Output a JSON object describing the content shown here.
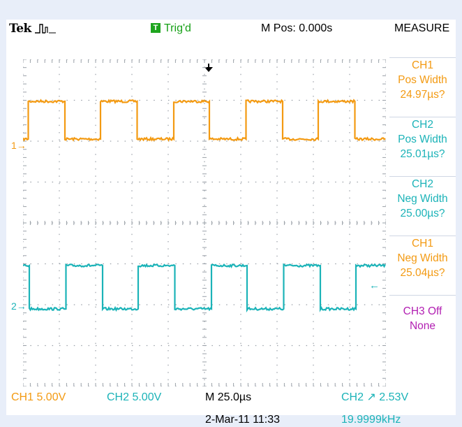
{
  "header": {
    "brand": "Tek",
    "trigger_badge": "T",
    "trigger_status": "Trig'd",
    "main_position": "M Pos: 0.000s",
    "menu_title": "MEASURE"
  },
  "channels": {
    "ch1_marker": "1",
    "ch2_marker": "2",
    "ch1_color": "#f39a12",
    "ch2_color": "#1bb3b8"
  },
  "measurements": [
    {
      "source": "CH1",
      "type": "Pos Width",
      "value": "24.97µs?"
    },
    {
      "source": "CH2",
      "type": "Pos Width",
      "value": "25.01µs?"
    },
    {
      "source": "CH2",
      "type": "Neg Width",
      "value": "25.00µs?"
    },
    {
      "source": "CH1",
      "type": "Neg Width",
      "value": "25.04µs?"
    },
    {
      "source": "CH3 Off",
      "type": "None",
      "value": ""
    }
  ],
  "status": {
    "ch1_scale": "CH1  5.00V",
    "ch2_scale": "CH2  5.00V",
    "timebase": "M 25.0µs",
    "trigger": "CH2 ↗ 2.53V",
    "date": "2-Mar-11 11:33",
    "frequency": "19.9999kHz"
  },
  "waveforms": {
    "ch1": {
      "period_us": 50,
      "high_us": 25,
      "start_high": true
    },
    "ch2": {
      "period_us": 50,
      "high_us": 25,
      "start_high": false
    }
  }
}
